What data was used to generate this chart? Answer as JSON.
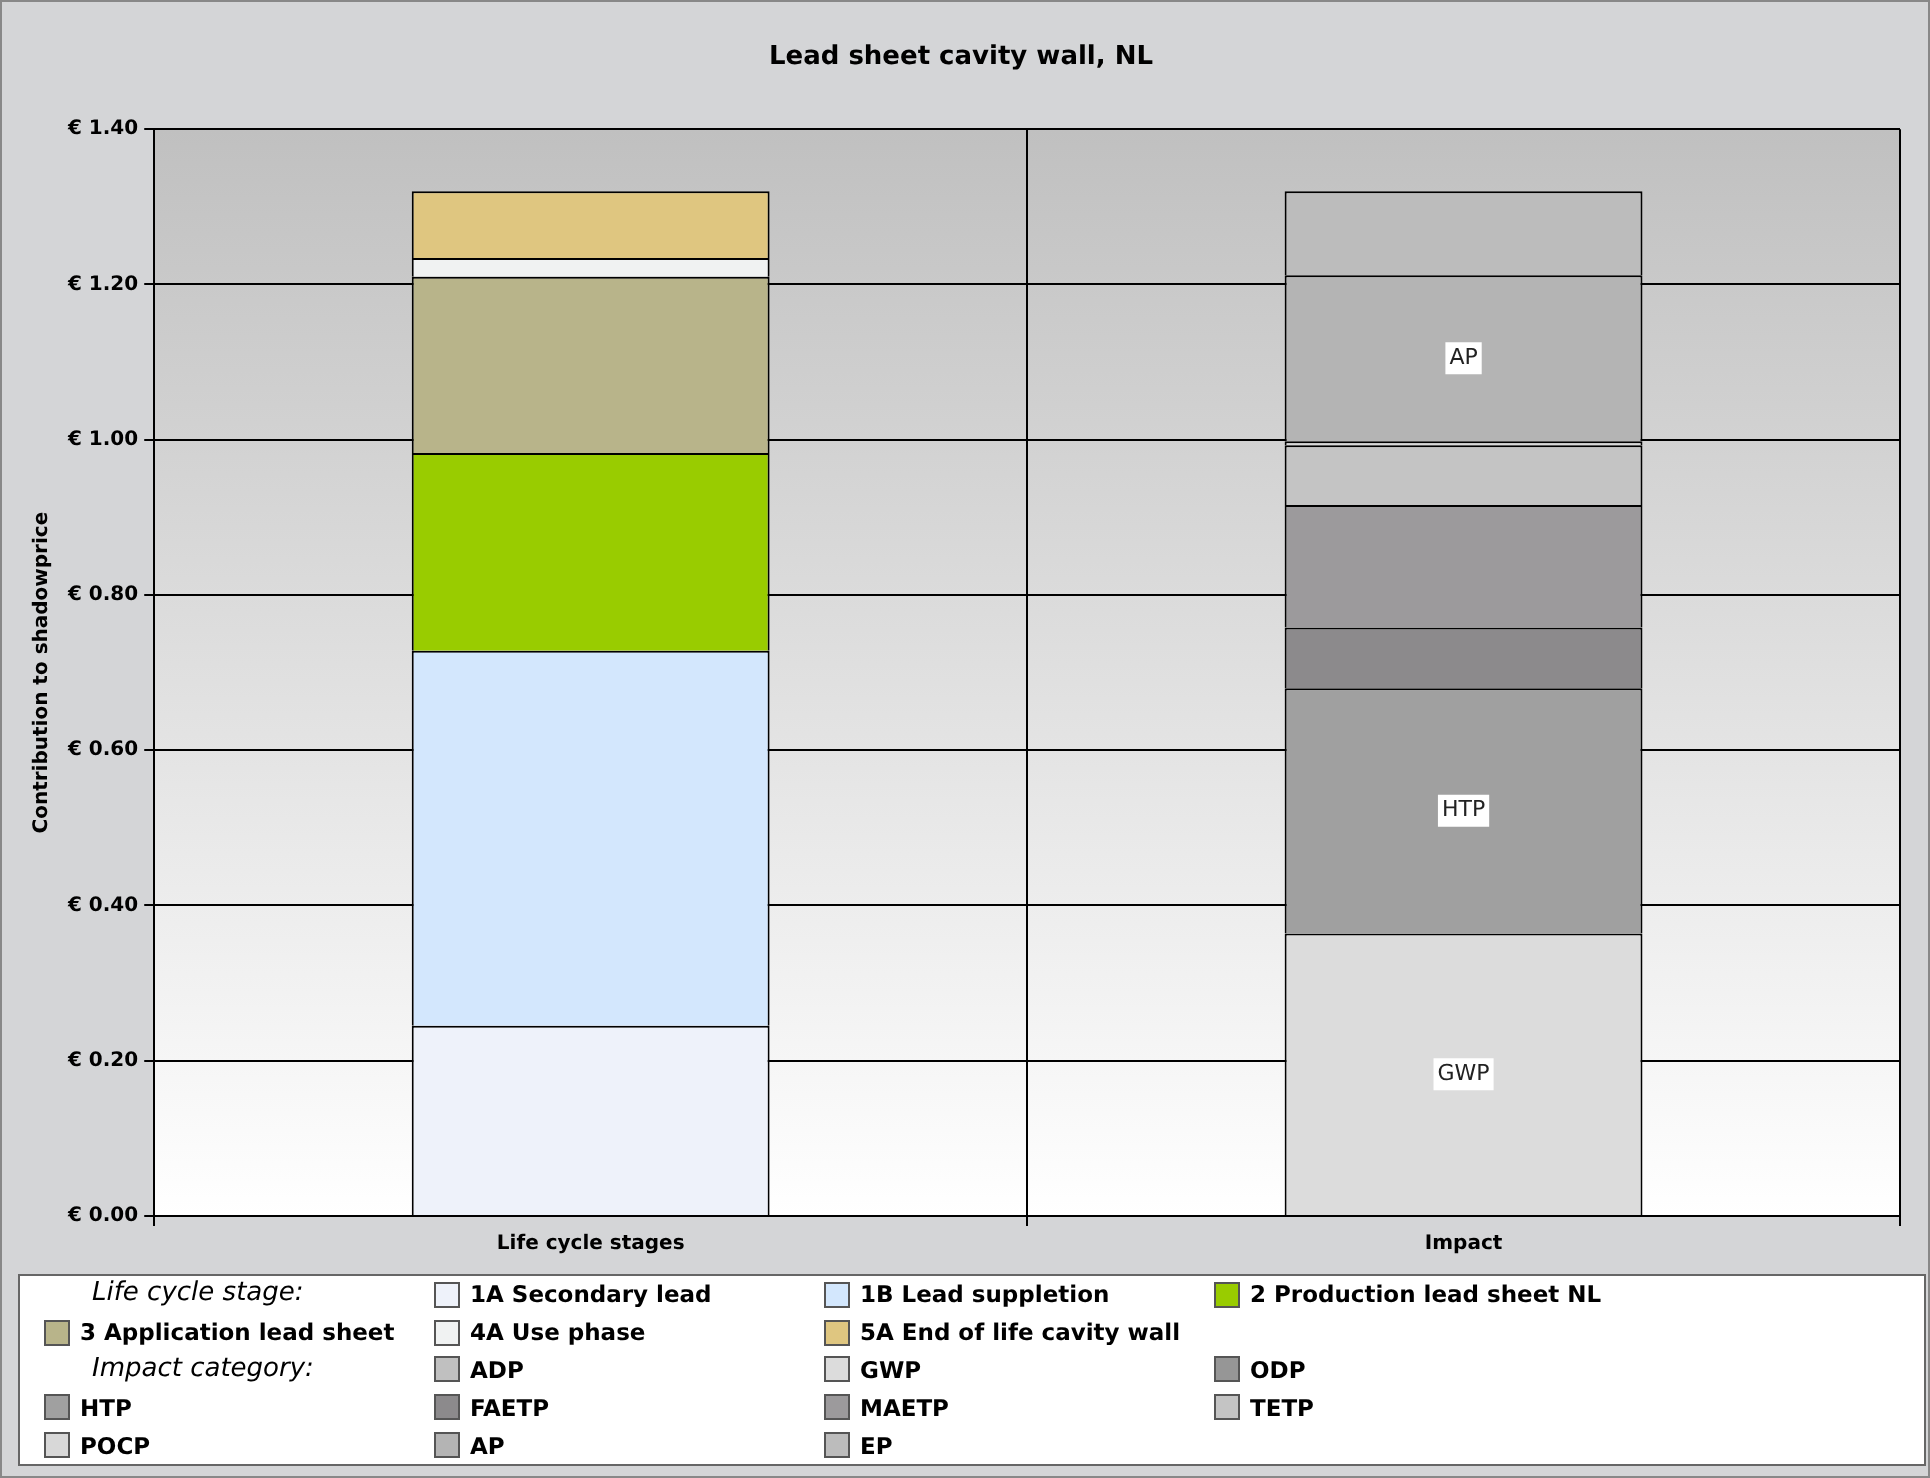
{
  "chart_data": {
    "type": "bar",
    "title": "Lead sheet cavity wall, NL",
    "ylabel": "Contribution to shadowprice",
    "categories": [
      "Life cycle stages",
      "Impact"
    ],
    "stacked": true,
    "ylim": [
      0,
      1.4
    ],
    "yticks": [
      {
        "value": 0,
        "label": "€ 0.00"
      },
      {
        "value": 0.2,
        "label": "€ 0.20"
      },
      {
        "value": 0.4,
        "label": "€ 0.40"
      },
      {
        "value": 0.6,
        "label": "€ 0.60"
      },
      {
        "value": 0.8,
        "label": "€ 0.80"
      },
      {
        "value": 1.0,
        "label": "€ 1.00"
      },
      {
        "value": 1.2,
        "label": "€ 1.20"
      },
      {
        "value": 1.4,
        "label": "€ 1.40"
      }
    ],
    "grid": true,
    "legend": "bottom",
    "annotations": [
      "Life cycle stage:",
      "Impact category:"
    ],
    "series": [
      {
        "name": "1A Secondary lead",
        "color": "#eef2fa",
        "values": [
          0.245,
          null
        ]
      },
      {
        "name": "1B Lead suppletion",
        "color": "#d3e7fd",
        "values": [
          0.483,
          null
        ]
      },
      {
        "name": "2 Production lead sheet NL",
        "color": "#99cc00",
        "values": [
          0.255,
          null
        ]
      },
      {
        "name": "3 Application lead sheet",
        "color": "#b8b48a",
        "values": [
          0.227,
          null
        ]
      },
      {
        "name": "4A Use phase",
        "color": "#f0f2f2",
        "values": [
          0.024,
          null
        ]
      },
      {
        "name": "5A End of life cavity wall",
        "color": "#dfc680",
        "values": [
          0.086,
          null
        ]
      },
      {
        "name": "ADP",
        "color": "#c0c0c0",
        "values": [
          null,
          0
        ]
      },
      {
        "name": "GWP",
        "color": "#dcdcdc",
        "values": [
          null,
          0.364
        ],
        "value_labels": [
          null,
          "GWP"
        ]
      },
      {
        "name": "ODP",
        "color": "#969696",
        "values": [
          null,
          0
        ]
      },
      {
        "name": "HTP",
        "color": "#a0a0a0",
        "values": [
          null,
          0.316
        ],
        "value_labels": [
          null,
          "HTP"
        ]
      },
      {
        "name": "FAETP",
        "color": "#8c8a8c",
        "values": [
          null,
          0.078
        ]
      },
      {
        "name": "MAETP",
        "color": "#9c9a9c",
        "values": [
          null,
          0.158
        ]
      },
      {
        "name": "TETP",
        "color": "#c4c4c4",
        "values": [
          null,
          0.077
        ]
      },
      {
        "name": "POCP",
        "color": "#d8d8d8",
        "values": [
          null,
          0.005
        ]
      },
      {
        "name": "AP",
        "color": "#b4b4b4",
        "values": [
          null,
          0.214
        ],
        "value_labels": [
          null,
          "AP"
        ]
      },
      {
        "name": "EP",
        "color": "#bcbcbc",
        "values": [
          null,
          0.108
        ]
      }
    ]
  }
}
